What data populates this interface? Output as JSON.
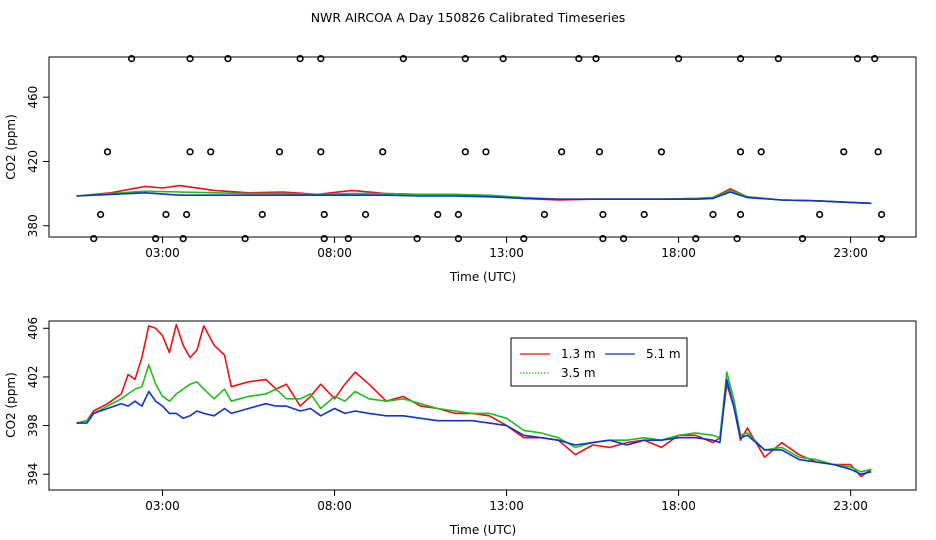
{
  "title": "NWR AIRCOA A  Day 150826  Calibrated Timeseries",
  "colors": {
    "red": "#ee1111",
    "green": "#22bb22",
    "blue": "#1133cc"
  },
  "chart_data": [
    {
      "type": "line",
      "panel": "top",
      "xlabel": "Time (UTC)",
      "ylabel": "CO2 (ppm)",
      "xlim": [
        -0.3,
        24.9
      ],
      "ylim": [
        373,
        485
      ],
      "xticks": [
        3,
        8,
        13,
        18,
        23
      ],
      "xtick_labels": [
        "03:00",
        "08:00",
        "13:00",
        "18:00",
        "23:00"
      ],
      "yticks": [
        380,
        420,
        460
      ],
      "ytick_labels": [
        "380",
        "420",
        "460"
      ],
      "series": [
        {
          "name": "1.3 m",
          "color": "red",
          "x": [
            0.5,
            1.5,
            2.5,
            3.0,
            3.5,
            4.5,
            5.5,
            6.5,
            7.5,
            8.5,
            9.5,
            10.5,
            11.5,
            12.5,
            13.5,
            14.5,
            15.5,
            16.5,
            17.5,
            18.5,
            19.0,
            19.5,
            20.0,
            21.0,
            22.0,
            23.0,
            23.6
          ],
          "y": [
            398.5,
            400.5,
            404.5,
            403.5,
            405,
            402,
            400.5,
            401,
            399.5,
            402,
            400,
            399.5,
            399.5,
            398.5,
            397,
            396,
            396.5,
            396.5,
            396.5,
            397,
            397.5,
            403,
            398,
            396,
            395.5,
            394.5,
            394
          ]
        },
        {
          "name": "3.5 m",
          "color": "green",
          "x": [
            0.5,
            1.5,
            2.5,
            3.5,
            4.5,
            5.5,
            6.5,
            7.5,
            8.5,
            9.5,
            10.5,
            11.5,
            12.5,
            13.5,
            14.5,
            15.5,
            16.5,
            17.5,
            18.5,
            19.0,
            19.5,
            20.0,
            21.0,
            22.0,
            23.0,
            23.6
          ],
          "y": [
            398.5,
            400,
            401.5,
            401,
            400.5,
            400,
            400,
            399.5,
            400,
            400,
            399.5,
            399.5,
            399,
            397.5,
            396.5,
            396.5,
            396.5,
            396.5,
            397,
            397.5,
            402,
            398,
            396,
            395.5,
            394.5,
            394
          ]
        },
        {
          "name": "5.1 m",
          "color": "blue",
          "x": [
            0.5,
            1.5,
            2.5,
            3.5,
            4.5,
            5.5,
            6.5,
            7.5,
            8.5,
            9.5,
            10.5,
            11.5,
            12.5,
            13.5,
            14.5,
            15.5,
            16.5,
            17.5,
            18.5,
            19.0,
            19.5,
            20.0,
            21.0,
            22.0,
            23.0,
            23.6
          ],
          "y": [
            398.5,
            399.5,
            400.5,
            399,
            399,
            399,
            399,
            399,
            399,
            399,
            398.5,
            398.5,
            398,
            397,
            396.5,
            396.5,
            396.5,
            396.5,
            396.5,
            397,
            401,
            397.5,
            396,
            395.5,
            394.5,
            394
          ]
        }
      ],
      "calibration_points": {
        "marker": "circle",
        "x": [
          2.1,
          3.8,
          4.9,
          7.0,
          7.6,
          10.0,
          11.8,
          12.9,
          15.1,
          15.6,
          18.0,
          19.8,
          20.9,
          23.2,
          23.7,
          1.4,
          3.8,
          4.4,
          6.4,
          7.6,
          9.4,
          11.8,
          12.4,
          14.6,
          15.7,
          17.5,
          19.8,
          20.4,
          22.8,
          23.8,
          1.0,
          2.8,
          3.6,
          5.4,
          7.7,
          8.4,
          10.4,
          11.6,
          13.5,
          15.8,
          16.4,
          18.5,
          19.7,
          21.6,
          23.9,
          1.2,
          3.1,
          3.7,
          5.9,
          7.7,
          8.9,
          11.0,
          11.6,
          14.1,
          15.8,
          17.0,
          19.0,
          19.8,
          22.1,
          23.9
        ],
        "y": [
          484,
          484,
          484,
          484,
          484,
          484,
          484,
          484,
          484,
          484,
          484,
          484,
          484,
          484,
          484,
          426,
          426,
          426,
          426,
          426,
          426,
          426,
          426,
          426,
          426,
          426,
          426,
          426,
          426,
          426,
          372,
          372,
          372,
          372,
          372,
          372,
          372,
          372,
          372,
          372,
          372,
          372,
          372,
          372,
          372,
          387,
          387,
          387,
          387,
          387,
          387,
          387,
          387,
          387,
          387,
          387,
          387,
          387,
          387,
          387
        ]
      }
    },
    {
      "type": "line",
      "panel": "bottom",
      "xlabel": "Time (UTC)",
      "ylabel": "CO2 (ppm)",
      "xlim": [
        -0.3,
        24.9
      ],
      "ylim": [
        392.7,
        406.6
      ],
      "xticks": [
        3,
        8,
        13,
        18,
        23
      ],
      "xtick_labels": [
        "03:00",
        "08:00",
        "13:00",
        "18:00",
        "23:00"
      ],
      "yticks": [
        394,
        398,
        402,
        406
      ],
      "ytick_labels": [
        "394",
        "398",
        "402",
        "406"
      ],
      "legend": "top-center",
      "series": [
        {
          "name": "1.3 m",
          "color": "red",
          "x": [
            0.5,
            0.8,
            1.0,
            1.4,
            1.8,
            2.0,
            2.2,
            2.4,
            2.6,
            2.8,
            3.0,
            3.2,
            3.4,
            3.6,
            3.8,
            4.0,
            4.2,
            4.5,
            4.8,
            5.0,
            5.5,
            6.0,
            6.3,
            6.6,
            7.0,
            7.3,
            7.6,
            8.0,
            8.3,
            8.6,
            9.0,
            9.5,
            10.0,
            10.5,
            11.0,
            11.5,
            12.0,
            12.5,
            13.0,
            13.5,
            14.0,
            14.5,
            15.0,
            15.5,
            16.0,
            16.5,
            17.0,
            17.5,
            18.0,
            18.5,
            19.0,
            19.2,
            19.4,
            19.6,
            19.8,
            20.0,
            20.5,
            21.0,
            21.5,
            22.0,
            22.5,
            23.0,
            23.3,
            23.6
          ],
          "y": [
            398.2,
            398.4,
            399.2,
            399.8,
            400.6,
            402.2,
            401.8,
            403.6,
            406.2,
            406.0,
            405.4,
            404.0,
            406.3,
            404.6,
            403.6,
            404.2,
            406.2,
            404.6,
            403.8,
            401.2,
            401.6,
            401.8,
            401.0,
            401.4,
            399.6,
            400.4,
            401.4,
            400.2,
            401.4,
            402.4,
            401.4,
            400.0,
            400.4,
            399.6,
            399.4,
            399.0,
            399.0,
            398.8,
            398.0,
            397.0,
            397.0,
            396.8,
            395.6,
            396.4,
            396.2,
            396.6,
            396.8,
            396.2,
            397.2,
            397.2,
            396.6,
            397.0,
            401.4,
            399.6,
            396.8,
            397.8,
            395.4,
            396.6,
            395.6,
            395.0,
            394.8,
            394.8,
            393.8,
            394.4
          ]
        },
        {
          "name": "3.5 m",
          "color": "green",
          "x": [
            0.5,
            0.8,
            1.0,
            1.4,
            1.8,
            2.0,
            2.2,
            2.4,
            2.6,
            2.8,
            3.0,
            3.2,
            3.4,
            3.6,
            3.8,
            4.0,
            4.2,
            4.5,
            4.8,
            5.0,
            5.5,
            6.0,
            6.3,
            6.6,
            7.0,
            7.3,
            7.6,
            8.0,
            8.3,
            8.6,
            9.0,
            9.5,
            10.0,
            10.5,
            11.0,
            11.5,
            12.0,
            12.5,
            13.0,
            13.5,
            14.0,
            14.5,
            15.0,
            15.5,
            16.0,
            16.5,
            17.0,
            17.5,
            18.0,
            18.5,
            19.0,
            19.2,
            19.4,
            19.6,
            19.8,
            20.0,
            20.5,
            21.0,
            21.5,
            22.0,
            22.5,
            23.0,
            23.3,
            23.6
          ],
          "y": [
            398.2,
            398.4,
            399.0,
            399.6,
            400.2,
            400.6,
            401.0,
            401.2,
            403.0,
            401.4,
            400.4,
            400.0,
            400.6,
            401.0,
            401.4,
            401.6,
            401.0,
            400.2,
            401.0,
            400.0,
            400.4,
            400.6,
            401.0,
            400.2,
            400.2,
            400.6,
            399.4,
            400.4,
            400.0,
            400.8,
            400.2,
            400.0,
            400.2,
            399.8,
            399.4,
            399.2,
            399.0,
            399.0,
            398.6,
            397.6,
            397.4,
            397.0,
            396.2,
            396.6,
            396.8,
            396.8,
            397.0,
            396.8,
            397.2,
            397.4,
            397.2,
            397.0,
            402.4,
            400.2,
            397.2,
            397.4,
            396.0,
            396.2,
            395.4,
            395.2,
            394.8,
            394.6,
            394.2,
            394.4
          ]
        },
        {
          "name": "5.1 m",
          "color": "blue",
          "x": [
            0.5,
            0.8,
            1.0,
            1.4,
            1.8,
            2.0,
            2.2,
            2.4,
            2.6,
            2.8,
            3.0,
            3.2,
            3.4,
            3.6,
            3.8,
            4.0,
            4.2,
            4.5,
            4.8,
            5.0,
            5.5,
            6.0,
            6.3,
            6.6,
            7.0,
            7.3,
            7.6,
            8.0,
            8.3,
            8.6,
            9.0,
            9.5,
            10.0,
            10.5,
            11.0,
            11.5,
            12.0,
            12.5,
            13.0,
            13.5,
            14.0,
            14.5,
            15.0,
            15.5,
            16.0,
            16.5,
            17.0,
            17.5,
            18.0,
            18.5,
            19.0,
            19.2,
            19.4,
            19.6,
            19.8,
            20.0,
            20.5,
            21.0,
            21.5,
            22.0,
            22.5,
            23.0,
            23.3,
            23.6
          ],
          "y": [
            398.2,
            398.2,
            399.0,
            399.4,
            399.8,
            399.6,
            400.0,
            399.6,
            400.8,
            400.0,
            399.6,
            399.0,
            399.0,
            398.6,
            398.8,
            399.2,
            399.0,
            398.8,
            399.4,
            399.0,
            399.4,
            399.8,
            399.6,
            399.6,
            399.2,
            399.4,
            398.8,
            399.4,
            399.0,
            399.2,
            399.0,
            398.8,
            398.8,
            398.6,
            398.4,
            398.4,
            398.4,
            398.2,
            398.0,
            397.2,
            397.0,
            396.8,
            396.4,
            396.6,
            396.8,
            396.4,
            396.8,
            396.8,
            397.0,
            397.0,
            396.8,
            396.6,
            401.8,
            399.6,
            397.0,
            397.2,
            396.0,
            396.0,
            395.2,
            395.0,
            394.8,
            394.4,
            394.0,
            394.2
          ]
        }
      ]
    }
  ]
}
